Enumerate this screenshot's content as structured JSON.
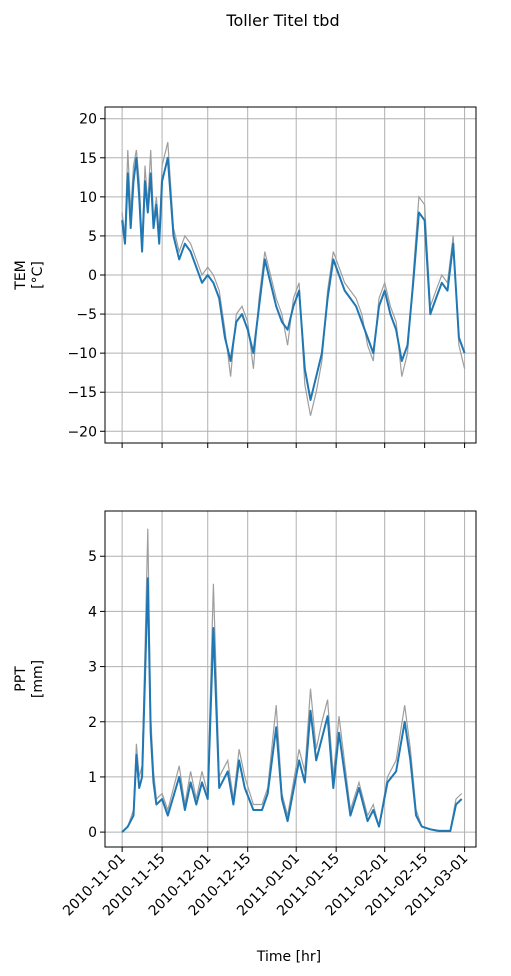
{
  "figure": {
    "suptitle": "Toller Titel tbd",
    "xlabel": "Time [hr]",
    "colors": {
      "series": "#1f77b4",
      "shadow": "#9e9e9e",
      "grid": "#b0b0b0"
    }
  },
  "chart_data": [
    {
      "type": "line",
      "ylabel_line1": "TEM",
      "ylabel_line2": "[°C]",
      "xlim": [
        "2010-10-26",
        "2011-03-05"
      ],
      "ylim": [
        -21.5,
        21.5
      ],
      "yticks": [
        -20,
        -15,
        -10,
        -5,
        0,
        5,
        10,
        15,
        20
      ],
      "ytick_labels": [
        "−20",
        "−15",
        "−10",
        "−5",
        "0",
        "5",
        "10",
        "15",
        "20"
      ],
      "grid": true,
      "x": [
        "2010-11-01",
        "2010-11-02",
        "2010-11-03",
        "2010-11-04",
        "2010-11-05",
        "2010-11-06",
        "2010-11-07",
        "2010-11-08",
        "2010-11-09",
        "2010-11-10",
        "2010-11-11",
        "2010-11-12",
        "2010-11-13",
        "2010-11-14",
        "2010-11-15",
        "2010-11-17",
        "2010-11-19",
        "2010-11-21",
        "2010-11-23",
        "2010-11-25",
        "2010-11-27",
        "2010-11-29",
        "2010-12-01",
        "2010-12-03",
        "2010-12-05",
        "2010-12-07",
        "2010-12-09",
        "2010-12-11",
        "2010-12-13",
        "2010-12-15",
        "2010-12-17",
        "2010-12-19",
        "2010-12-21",
        "2010-12-23",
        "2010-12-25",
        "2010-12-27",
        "2010-12-29",
        "2010-12-31",
        "2011-01-02",
        "2011-01-04",
        "2011-01-06",
        "2011-01-08",
        "2011-01-10",
        "2011-01-12",
        "2011-01-14",
        "2011-01-16",
        "2011-01-18",
        "2011-01-20",
        "2011-01-22",
        "2011-01-24",
        "2011-01-26",
        "2011-01-28",
        "2011-01-30",
        "2011-02-01",
        "2011-02-03",
        "2011-02-05",
        "2011-02-07",
        "2011-02-09",
        "2011-02-11",
        "2011-02-13",
        "2011-02-15",
        "2011-02-17",
        "2011-02-19",
        "2011-02-21",
        "2011-02-23",
        "2011-02-25",
        "2011-02-27",
        "2011-03-01"
      ],
      "series": [
        {
          "values": [
            7,
            4,
            13,
            6,
            12,
            15,
            10,
            3,
            12,
            8,
            13,
            6,
            9,
            4,
            12,
            15,
            5,
            2,
            4,
            3,
            1,
            -1,
            0,
            -1,
            -3,
            -8,
            -11,
            -6,
            -5,
            -7,
            -10,
            -4,
            2,
            -1,
            -4,
            -6,
            -7,
            -4,
            -2,
            -12,
            -16,
            -13,
            -10,
            -3,
            2,
            0,
            -2,
            -3,
            -4,
            -6,
            -8,
            -10,
            -4,
            -2,
            -5,
            -7,
            -11,
            -9,
            -1,
            8,
            7,
            -5,
            -3,
            -1,
            -2,
            4,
            -8,
            -10
          ]
        }
      ],
      "shadow_values": [
        8,
        5,
        16,
        8,
        14,
        16,
        12,
        4,
        14,
        9,
        16,
        7,
        10,
        5,
        14,
        17,
        6,
        3,
        5,
        4,
        2,
        0,
        1,
        0,
        -2,
        -7,
        -13,
        -5,
        -4,
        -6,
        -12,
        -3,
        3,
        0,
        -3,
        -5,
        -9,
        -3,
        -1,
        -14,
        -18,
        -15,
        -11,
        -2,
        3,
        1,
        -1,
        -2,
        -3,
        -5,
        -9,
        -11,
        -3,
        -1,
        -4,
        -6,
        -13,
        -10,
        0,
        10,
        9,
        -4,
        -2,
        0,
        -1,
        5,
        -9,
        -12
      ]
    },
    {
      "type": "line",
      "ylabel_line1": "PPT",
      "ylabel_line2": "[mm]",
      "xlim": [
        "2010-10-26",
        "2011-03-05"
      ],
      "ylim": [
        -0.27,
        5.82
      ],
      "yticks": [
        0,
        1,
        2,
        3,
        4,
        5
      ],
      "ytick_labels": [
        "0",
        "1",
        "2",
        "3",
        "4",
        "5"
      ],
      "xtick_labels": [
        "2010-11-01",
        "2010-11-15",
        "2010-12-01",
        "2010-12-15",
        "2011-01-01",
        "2011-01-15",
        "2011-02-01",
        "2011-02-15",
        "2011-03-01"
      ],
      "grid": true,
      "x": [
        "2010-11-01",
        "2010-11-03",
        "2010-11-05",
        "2010-11-06",
        "2010-11-07",
        "2010-11-08",
        "2010-11-09",
        "2010-11-10",
        "2010-11-11",
        "2010-11-12",
        "2010-11-13",
        "2010-11-15",
        "2010-11-17",
        "2010-11-21",
        "2010-11-23",
        "2010-11-25",
        "2010-11-27",
        "2010-11-29",
        "2010-12-01",
        "2010-12-03",
        "2010-12-05",
        "2010-12-08",
        "2010-12-10",
        "2010-12-12",
        "2010-12-14",
        "2010-12-17",
        "2010-12-20",
        "2010-12-22",
        "2010-12-25",
        "2010-12-27",
        "2010-12-29",
        "2011-01-02",
        "2011-01-04",
        "2011-01-06",
        "2011-01-08",
        "2011-01-10",
        "2011-01-12",
        "2011-01-14",
        "2011-01-16",
        "2011-01-20",
        "2011-01-23",
        "2011-01-26",
        "2011-01-28",
        "2011-01-30",
        "2011-02-02",
        "2011-02-05",
        "2011-02-08",
        "2011-02-10",
        "2011-02-12",
        "2011-02-14",
        "2011-02-17",
        "2011-02-20",
        "2011-02-24",
        "2011-02-26",
        "2011-02-28"
      ],
      "series": [
        {
          "values": [
            0,
            0.1,
            0.3,
            1.4,
            0.8,
            1.0,
            2.8,
            4.6,
            1.8,
            0.9,
            0.5,
            0.6,
            0.3,
            1.0,
            0.4,
            0.9,
            0.5,
            0.9,
            0.6,
            3.7,
            0.8,
            1.1,
            0.5,
            1.3,
            0.8,
            0.4,
            0.4,
            0.7,
            1.9,
            0.6,
            0.2,
            1.3,
            0.9,
            2.2,
            1.3,
            1.7,
            2.1,
            0.8,
            1.8,
            0.3,
            0.8,
            0.2,
            0.4,
            0.1,
            0.9,
            1.1,
            2.0,
            1.3,
            0.3,
            0.1,
            0.05,
            0.02,
            0.02,
            0.5,
            0.6
          ]
        }
      ],
      "shadow_values": [
        0,
        0.1,
        0.4,
        1.6,
        1.0,
        1.2,
        3.3,
        5.5,
        2.1,
        1.1,
        0.6,
        0.7,
        0.4,
        1.2,
        0.5,
        1.1,
        0.6,
        1.1,
        0.7,
        4.5,
        1.0,
        1.3,
        0.6,
        1.5,
        1.0,
        0.5,
        0.5,
        0.8,
        2.3,
        0.7,
        0.3,
        1.5,
        1.1,
        2.6,
        1.5,
        2.0,
        2.4,
        1.0,
        2.1,
        0.4,
        0.9,
        0.3,
        0.5,
        0.1,
        1.0,
        1.3,
        2.3,
        1.5,
        0.4,
        0.1,
        0.05,
        0.03,
        0.03,
        0.6,
        0.7
      ]
    }
  ]
}
